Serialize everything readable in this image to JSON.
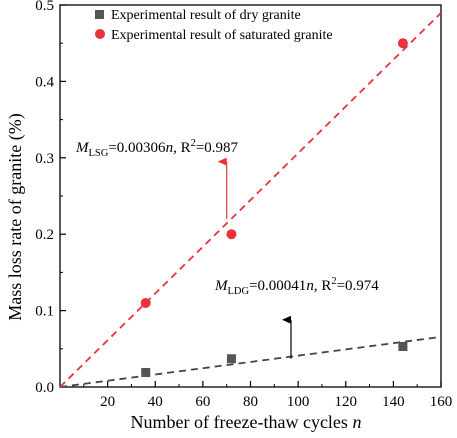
{
  "chart_data": {
    "type": "scatter",
    "xlabel": "Number of freeze-thaw cycles",
    "xlabel_var": "n",
    "ylabel": "Mass loss rate of granite (%)",
    "xlim": [
      0,
      160
    ],
    "ylim": [
      0,
      0.5
    ],
    "xticks": [
      20,
      40,
      60,
      80,
      100,
      120,
      140,
      160
    ],
    "yticks": [
      0.0,
      0.1,
      0.2,
      0.3,
      0.4,
      0.5
    ],
    "xtick_labels": [
      "20",
      "40",
      "60",
      "80",
      "100",
      "120",
      "140",
      "160"
    ],
    "ytick_labels": [
      "0.0",
      "0.1",
      "0.2",
      "0.3",
      "0.4",
      "0.5"
    ],
    "legend_position": "top-left",
    "grid": false,
    "series": [
      {
        "name": "Experimental result of dry granite",
        "marker": "square",
        "color": "#555555",
        "x": [
          36,
          72,
          144
        ],
        "y": [
          0.019,
          0.037,
          0.053
        ]
      },
      {
        "name": "Experimental result of saturated granite",
        "marker": "circle",
        "color": "#e8333a",
        "x": [
          36,
          72,
          144
        ],
        "y": [
          0.11,
          0.2,
          0.45
        ]
      }
    ],
    "fits": [
      {
        "series": "dry",
        "slope": 0.00041,
        "color": "#444444",
        "dash": true,
        "label": {
          "var": "M",
          "sub": "LDG",
          "eq": "=0.00041",
          "n": "n",
          "r2_prefix": ", R",
          "r2_sup": "2",
          "r2_value": "=0.974"
        },
        "arrow_from_x": 97,
        "arrow_from_y": 0.037,
        "arrow_to_x": 97,
        "arrow_to_y": 0.088
      },
      {
        "series": "saturated",
        "slope": 0.00306,
        "color": "#e8333a",
        "dash": true,
        "label": {
          "var": "M",
          "sub": "LSG",
          "eq": "=0.00306",
          "n": "n",
          "r2_prefix": ", R",
          "r2_sup": "2",
          "r2_value": "=0.987"
        },
        "arrow_from_x": 70,
        "arrow_from_y": 0.22,
        "arrow_to_x": 70,
        "arrow_to_y": 0.295
      }
    ]
  }
}
